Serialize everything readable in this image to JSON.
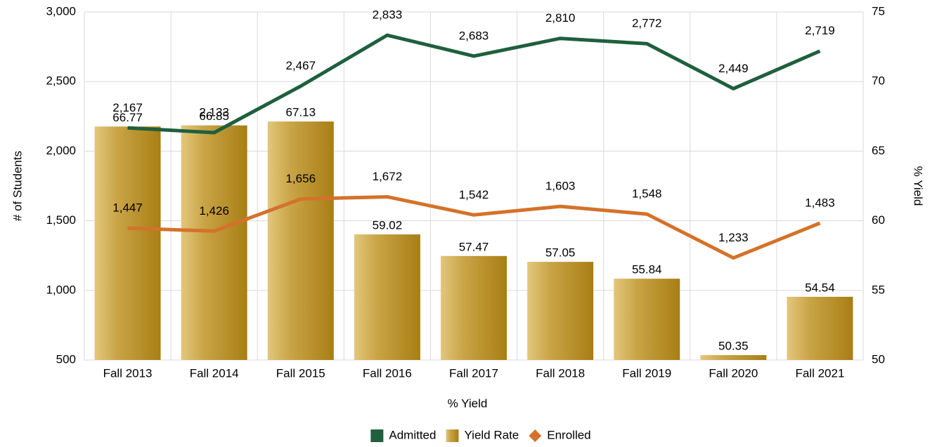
{
  "chart_data": {
    "type": "bar",
    "x_label": "% Yield",
    "y_label": "# of Students",
    "y2_label": "% Yield",
    "categories": [
      "Fall 2013",
      "Fall 2014",
      "Fall 2015",
      "Fall 2016",
      "Fall 2017",
      "Fall 2018",
      "Fall 2019",
      "Fall 2020",
      "Fall 2021"
    ],
    "series": [
      {
        "name": "Admitted",
        "type": "line",
        "color": "#1f5f3d",
        "marker": "square",
        "values": [
          2167,
          2133,
          2467,
          2833,
          2683,
          2810,
          2772,
          2449,
          2719
        ],
        "value_labels": [
          "2,167",
          "2,133",
          "2,467",
          "2,833",
          "2,683",
          "2,810",
          "2,772",
          "2,449",
          "2,719"
        ]
      },
      {
        "name": "Yield Rate",
        "type": "bar",
        "axis": "y2",
        "color": "#b8902a",
        "marker": "square",
        "values": [
          66.77,
          66.85,
          67.13,
          59.02,
          57.47,
          57.05,
          55.84,
          50.35,
          54.54
        ]
      },
      {
        "name": "Enrolled",
        "type": "line",
        "color": "#d4722a",
        "marker": "diamond",
        "values": [
          1447,
          1426,
          1656,
          1672,
          1542,
          1603,
          1548,
          1233,
          1483
        ],
        "value_labels": [
          "1,447",
          "1,426",
          "1,656",
          "1,672",
          "1,542",
          "1,603",
          "1,548",
          "1,233",
          "1,483"
        ]
      }
    ],
    "ylim": [
      500,
      3000
    ],
    "yticks": [
      500,
      {
        "value": 1000,
        "label": "1,000"
      },
      {
        "value": 1500,
        "label": "1,500"
      },
      {
        "value": 2000,
        "label": "2,000"
      },
      {
        "value": 2500,
        "label": "2,500"
      },
      {
        "value": 3000,
        "label": "3,000"
      }
    ],
    "y2lim": [
      50,
      75
    ],
    "y2ticks": [
      50,
      55,
      60,
      65,
      70,
      75
    ],
    "grid": true,
    "legend": "bottom"
  }
}
